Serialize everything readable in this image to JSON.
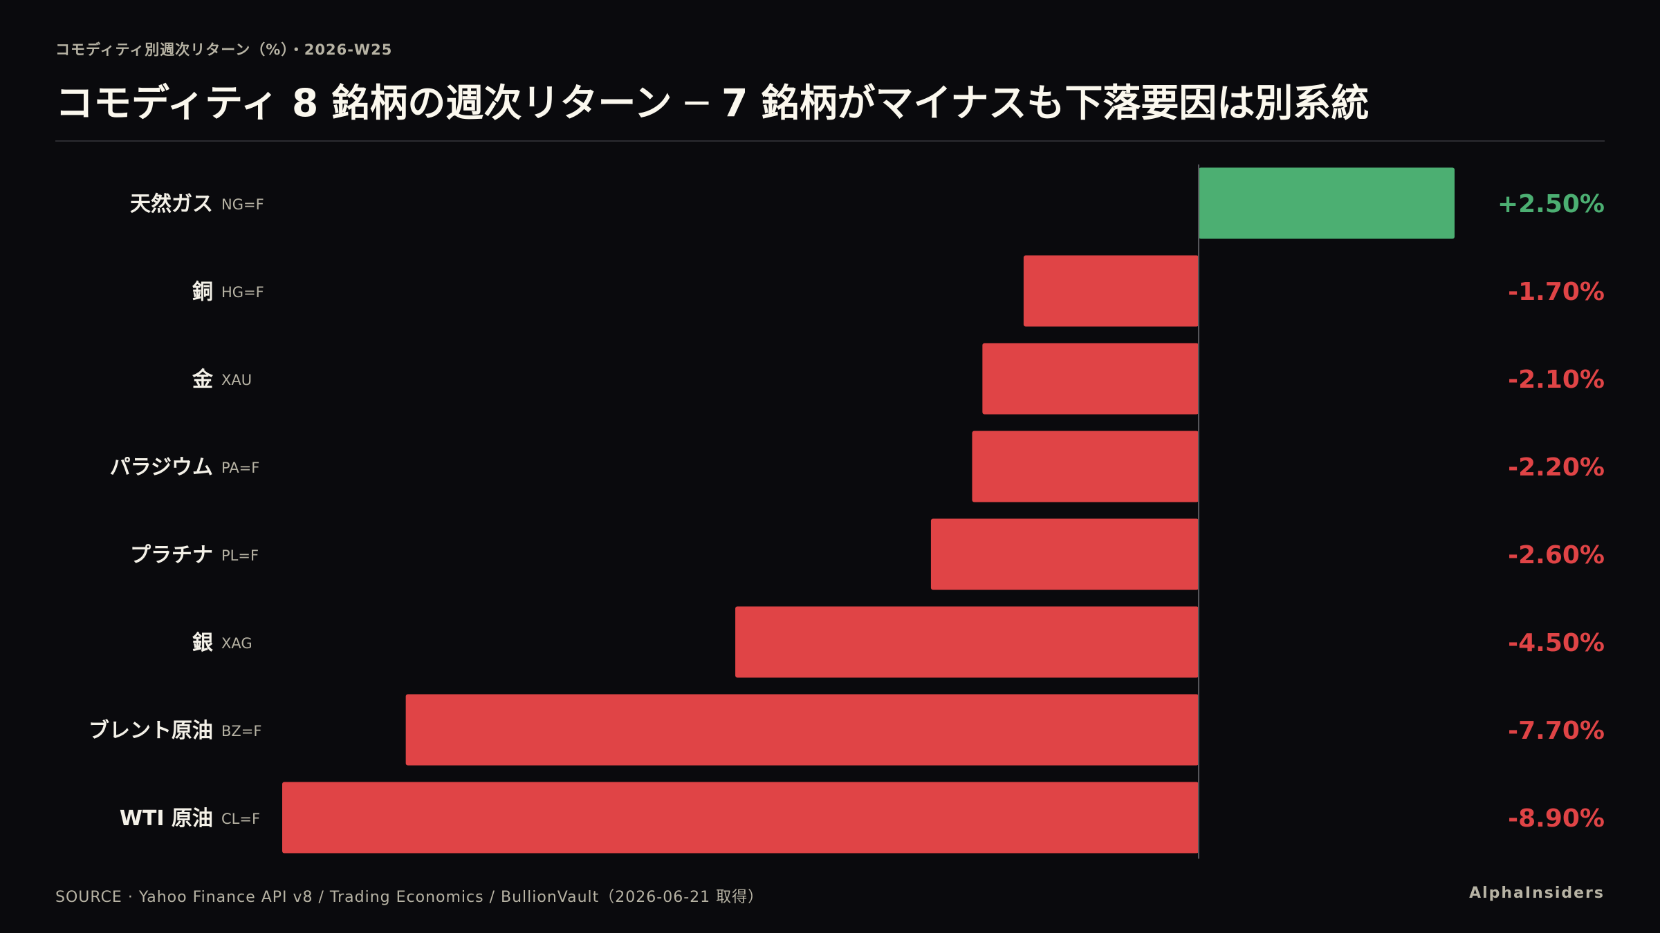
{
  "header": {
    "kicker": "コモディティ別週次リターン（%）・2026-W25",
    "title": "コモディティ 8 銘柄の週次リターン ─ 7 銘柄がマイナスも下落要因は別系統"
  },
  "footer": {
    "source": "SOURCE · Yahoo Finance API v8 / Trading Economics / BullionVault（2026-06-21 取得）",
    "brand": "AlphaInsiders"
  },
  "colors": {
    "positive": "#4caf72",
    "negative": "#e04446",
    "label": "#f4f1e8",
    "ticker": "#b7b3a4",
    "axis": "#55555a"
  },
  "chart_data": {
    "type": "bar",
    "orientation": "horizontal",
    "categories": [
      "天然ガス",
      "銅",
      "金",
      "パラジウム",
      "プラチナ",
      "銀",
      "ブレント原油",
      "WTI 原油"
    ],
    "tickers": [
      "NG=F",
      "HG=F",
      "XAU",
      "PA=F",
      "PL=F",
      "XAG",
      "BZ=F",
      "CL=F"
    ],
    "values": [
      2.5,
      -1.7,
      -2.1,
      -2.2,
      -2.6,
      -4.5,
      -7.7,
      -8.9
    ],
    "value_labels": [
      "+2.50%",
      "-1.70%",
      "-2.10%",
      "-2.20%",
      "-2.60%",
      "-4.50%",
      "-7.70%",
      "-8.90%"
    ],
    "unit": "%",
    "xlim": [
      -8.9,
      2.5
    ],
    "grid": false,
    "legend": "none"
  }
}
